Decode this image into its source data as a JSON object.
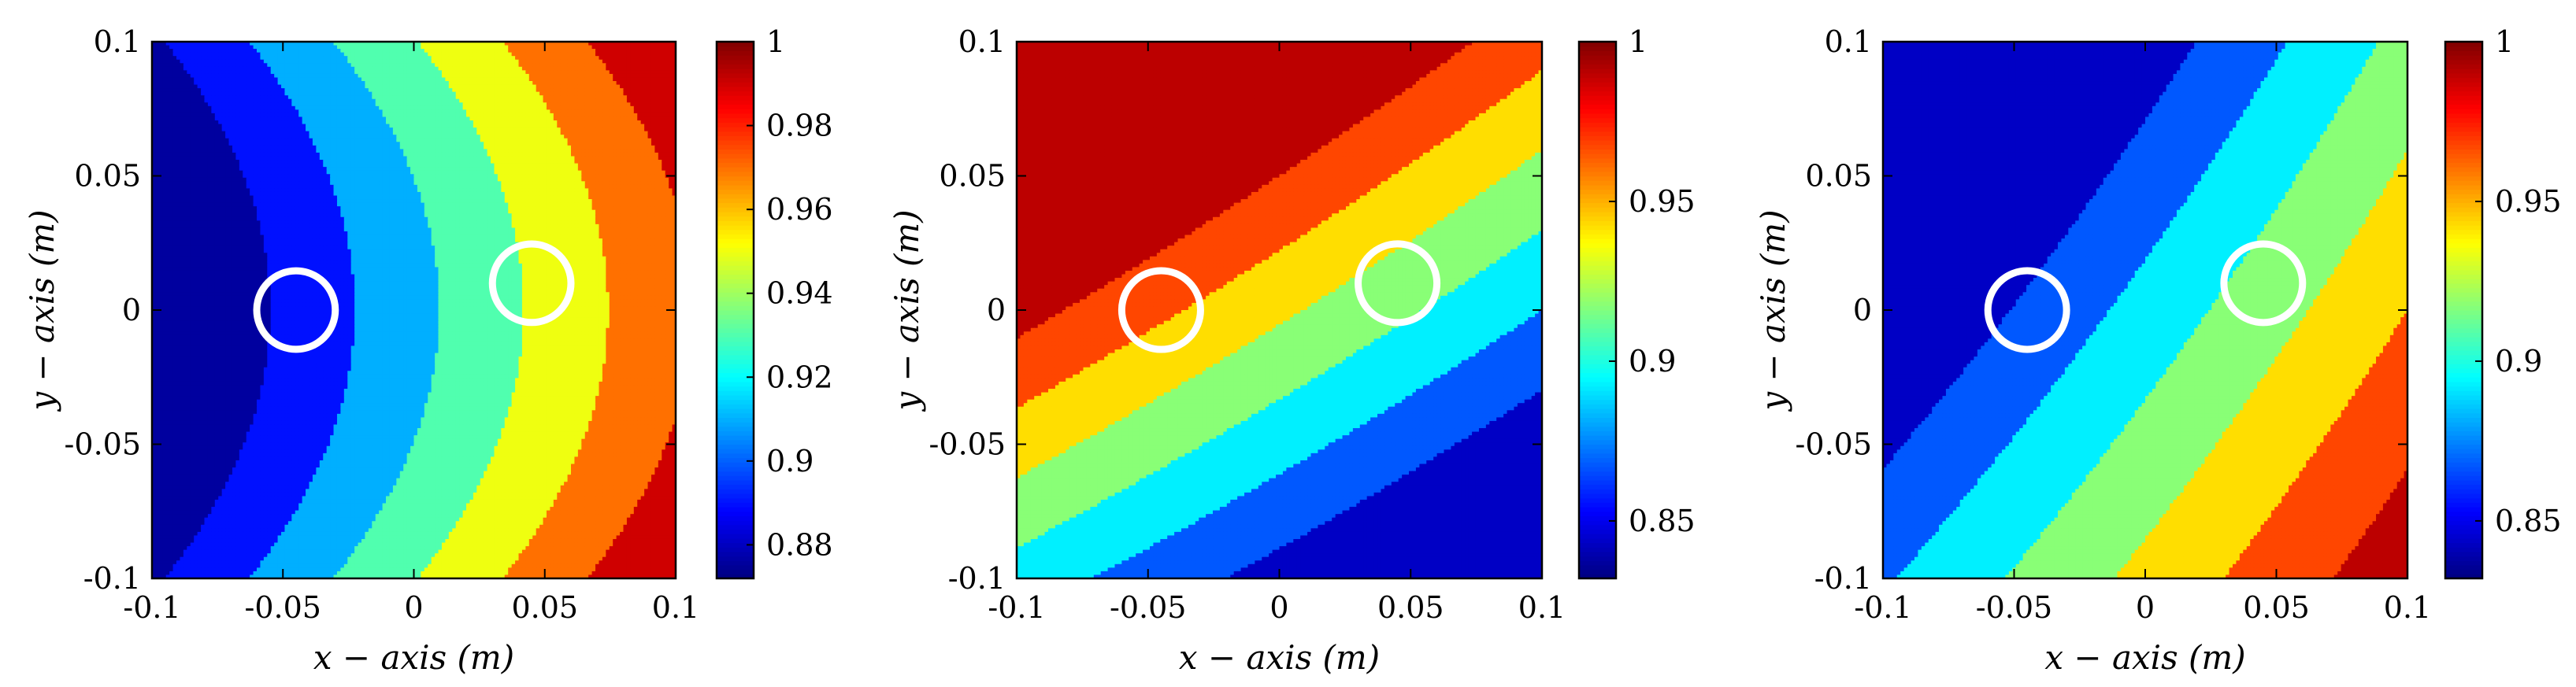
{
  "chart_data": [
    {
      "type": "heatmap",
      "xlabel": "x − axis (m)",
      "ylabel": "y − axis (m)",
      "xlim": [
        -0.1,
        0.1
      ],
      "ylim": [
        -0.1,
        0.1
      ],
      "x_ticks": [
        "-0.1",
        "-0.05",
        "0",
        "0.05",
        "0.1"
      ],
      "y_ticks": [
        "-0.1",
        "-0.05",
        "0",
        "0.05",
        "0.1"
      ],
      "colorbar": {
        "range": [
          0.872,
          1.0
        ],
        "ticks": [
          0.88,
          0.9,
          0.92,
          0.94,
          0.96,
          0.98,
          1.0
        ],
        "tick_labels": [
          "0.88",
          "0.9",
          "0.92",
          "0.94",
          "0.96",
          "0.98",
          "1"
        ]
      },
      "contour_levels": [
        0.88,
        0.9,
        0.92,
        0.94,
        0.96,
        0.98
      ],
      "field": "vertical bands increasing left to right",
      "markers": [
        {
          "x": -0.045,
          "y": 0.0,
          "radius": 0.015,
          "color": "#ffffff"
        },
        {
          "x": 0.045,
          "y": 0.01,
          "radius": 0.015,
          "color": "#ffffff"
        }
      ]
    },
    {
      "type": "heatmap",
      "xlabel": "x − axis (m)",
      "ylabel": "y − axis (m)",
      "xlim": [
        -0.1,
        0.1
      ],
      "ylim": [
        -0.1,
        0.1
      ],
      "x_ticks": [
        "-0.1",
        "-0.05",
        "0",
        "0.05",
        "0.1"
      ],
      "y_ticks": [
        "-0.1",
        "-0.05",
        "0",
        "0.05",
        "0.1"
      ],
      "colorbar": {
        "range": [
          0.832,
          1.0
        ],
        "ticks": [
          0.85,
          0.9,
          0.95,
          1.0
        ],
        "tick_labels": [
          "0.85",
          "0.9",
          "0.95",
          "1"
        ]
      },
      "contour_levels": [
        0.855,
        0.88,
        0.905,
        0.93,
        0.955,
        0.98
      ],
      "field": "diagonal bands increasing toward top-left",
      "markers": [
        {
          "x": -0.045,
          "y": 0.0,
          "radius": 0.015,
          "color": "#ffffff"
        },
        {
          "x": 0.045,
          "y": 0.01,
          "radius": 0.015,
          "color": "#ffffff"
        }
      ]
    },
    {
      "type": "heatmap",
      "xlabel": "x − axis (m)",
      "ylabel": "y − axis (m)",
      "xlim": [
        -0.1,
        0.1
      ],
      "ylim": [
        -0.1,
        0.1
      ],
      "x_ticks": [
        "-0.1",
        "-0.05",
        "0",
        "0.05",
        "0.1"
      ],
      "y_ticks": [
        "-0.1",
        "-0.05",
        "0",
        "0.05",
        "0.1"
      ],
      "colorbar": {
        "range": [
          0.832,
          1.0
        ],
        "ticks": [
          0.85,
          0.9,
          0.95,
          1.0
        ],
        "tick_labels": [
          "0.85",
          "0.9",
          "0.95",
          "1"
        ]
      },
      "contour_levels": [
        0.855,
        0.88,
        0.905,
        0.93,
        0.955,
        0.98
      ],
      "field": "diagonal bands increasing toward bottom-right",
      "markers": [
        {
          "x": -0.045,
          "y": 0.0,
          "radius": 0.015,
          "color": "#ffffff"
        },
        {
          "x": 0.045,
          "y": 0.01,
          "radius": 0.015,
          "color": "#ffffff"
        }
      ]
    }
  ]
}
